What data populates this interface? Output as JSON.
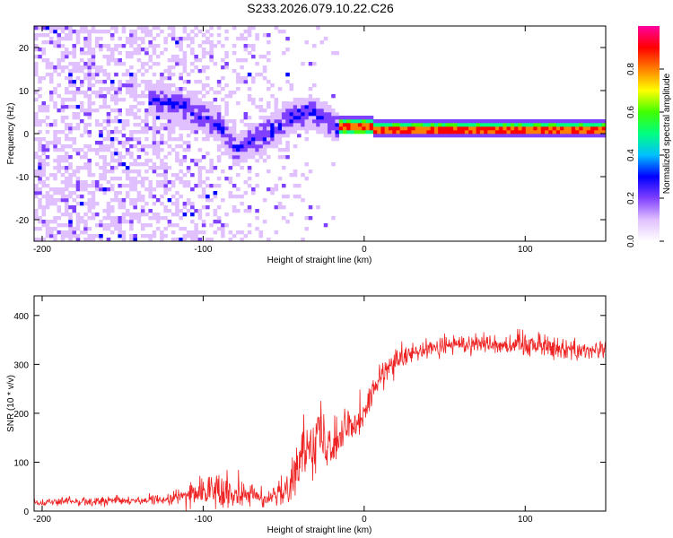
{
  "title": "S233.2026.079.10.22.C26",
  "chart_data": [
    {
      "type": "heatmap",
      "title": "S233.2026.079.10.22.C26",
      "xlabel": "Height of straight line (km)",
      "ylabel": "Frequency (Hz)",
      "xlim": [
        -205,
        150
      ],
      "ylim": [
        -25,
        25
      ],
      "xticks": [
        -200,
        -100,
        0,
        100
      ],
      "yticks": [
        -20,
        -10,
        0,
        10,
        20
      ],
      "colorbar": {
        "label": "Normalized spectral amplitude",
        "range": [
          0,
          1
        ],
        "ticks": [
          "0.0",
          "0.2",
          "0.4",
          "0.6",
          "0.8"
        ],
        "colors": [
          "#ffffff",
          "#e0c0ff",
          "#8040ff",
          "#0000ff",
          "#00c0ff",
          "#00ff80",
          "#40ff00",
          "#ffff00",
          "#ff8000",
          "#ff0000",
          "#ff00a0"
        ]
      },
      "features": {
        "noise_region_x": [
          -205,
          -20
        ],
        "signal_line_x": [
          -15,
          150
        ],
        "signal_freq_hz": 1.2,
        "band_ridge": [
          [
            -130,
            8
          ],
          [
            -110,
            6
          ],
          [
            -90,
            2
          ],
          [
            -80,
            -4
          ],
          [
            -60,
            0
          ],
          [
            -45,
            4
          ],
          [
            -30,
            5
          ],
          [
            -15,
            1
          ],
          [
            0,
            2
          ],
          [
            20,
            1
          ],
          [
            60,
            1
          ],
          [
            100,
            1.5
          ],
          [
            150,
            1.5
          ]
        ]
      }
    },
    {
      "type": "line",
      "title": "",
      "xlabel": "Height of straight line (km)",
      "ylabel": "SNR (10 * v/v)",
      "xlim": [
        -205,
        150
      ],
      "ylim": [
        0,
        440
      ],
      "xticks": [
        -200,
        -100,
        0,
        100
      ],
      "yticks": [
        0,
        100,
        200,
        300,
        400
      ],
      "series": [
        {
          "name": "SNR",
          "color": "#ee2222",
          "x": [
            -205,
            -180,
            -160,
            -140,
            -130,
            -120,
            -110,
            -100,
            -90,
            -80,
            -70,
            -60,
            -50,
            -45,
            -40,
            -35,
            -30,
            -25,
            -20,
            -15,
            -10,
            -5,
            0,
            5,
            10,
            15,
            20,
            30,
            40,
            50,
            60,
            70,
            80,
            90,
            100,
            110,
            120,
            130,
            140,
            150
          ],
          "values": [
            18,
            20,
            20,
            22,
            22,
            25,
            32,
            40,
            45,
            42,
            35,
            22,
            40,
            70,
            100,
            140,
            160,
            150,
            150,
            155,
            170,
            190,
            200,
            240,
            270,
            290,
            305,
            320,
            330,
            338,
            342,
            345,
            342,
            340,
            345,
            340,
            335,
            330,
            330,
            328
          ],
          "noise_amp": [
            6,
            8,
            8,
            8,
            8,
            12,
            20,
            25,
            30,
            28,
            20,
            12,
            25,
            35,
            45,
            50,
            60,
            55,
            50,
            45,
            40,
            35,
            30,
            28,
            25,
            24,
            22,
            20,
            20,
            18,
            18,
            18,
            18,
            18,
            28,
            22,
            18,
            18,
            18,
            18
          ]
        }
      ]
    }
  ]
}
